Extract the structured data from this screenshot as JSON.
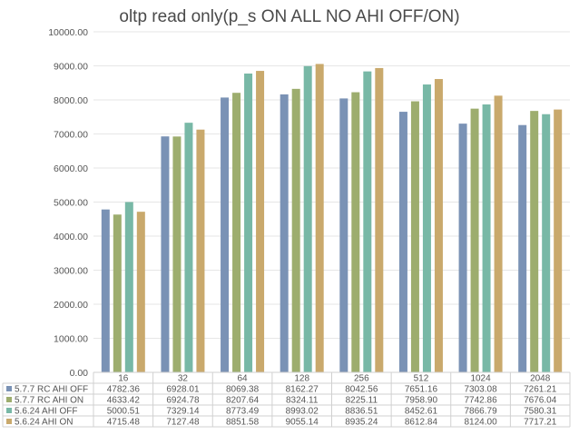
{
  "chart_data": {
    "type": "bar",
    "title": "oltp read only(p_s ON ALL NO AHI OFF/ON)",
    "categories": [
      "16",
      "32",
      "64",
      "128",
      "256",
      "512",
      "1024",
      "2048"
    ],
    "ylim": [
      0,
      10000
    ],
    "yticks": [
      "0.00",
      "1000.00",
      "2000.00",
      "3000.00",
      "4000.00",
      "5000.00",
      "6000.00",
      "7000.00",
      "8000.00",
      "9000.00",
      "10000.00"
    ],
    "grid": true,
    "legend": "data-table-below",
    "series": [
      {
        "name": "5.7.7 RC AHI OFF",
        "color": "#7a92b5",
        "values": [
          4782.36,
          6928.01,
          8069.38,
          8162.27,
          8042.56,
          7651.16,
          7303.08,
          7261.21
        ],
        "labels": [
          "4782.36",
          "6928.01",
          "8069.38",
          "8162.27",
          "8042.56",
          "7651.16",
          "7303.08",
          "7261.21"
        ]
      },
      {
        "name": "5.7.7 RC AHI ON",
        "color": "#9dad6e",
        "values": [
          4633.42,
          6924.78,
          8207.64,
          8324.11,
          8225.11,
          7958.9,
          7742.86,
          7676.04
        ],
        "labels": [
          "4633.42",
          "6924.78",
          "8207.64",
          "8324.11",
          "8225.11",
          "7958.90",
          "7742.86",
          "7676.04"
        ]
      },
      {
        "name": "5.6.24 AHI OFF",
        "color": "#78b8a6",
        "values": [
          5000.51,
          7329.14,
          8773.49,
          8993.02,
          8836.51,
          8452.61,
          7866.79,
          7580.31
        ],
        "labels": [
          "5000.51",
          "7329.14",
          "8773.49",
          "8993.02",
          "8836.51",
          "8452.61",
          "7866.79",
          "7580.31"
        ]
      },
      {
        "name": "5.6.24 AHI ON",
        "color": "#c9a96c",
        "values": [
          4715.48,
          7127.48,
          8851.58,
          9055.14,
          8935.24,
          8612.84,
          8124.0,
          7717.21
        ],
        "labels": [
          "4715.48",
          "7127.48",
          "8851.58",
          "9055.14",
          "8935.24",
          "8612.84",
          "8124.00",
          "7717.21"
        ]
      }
    ]
  }
}
